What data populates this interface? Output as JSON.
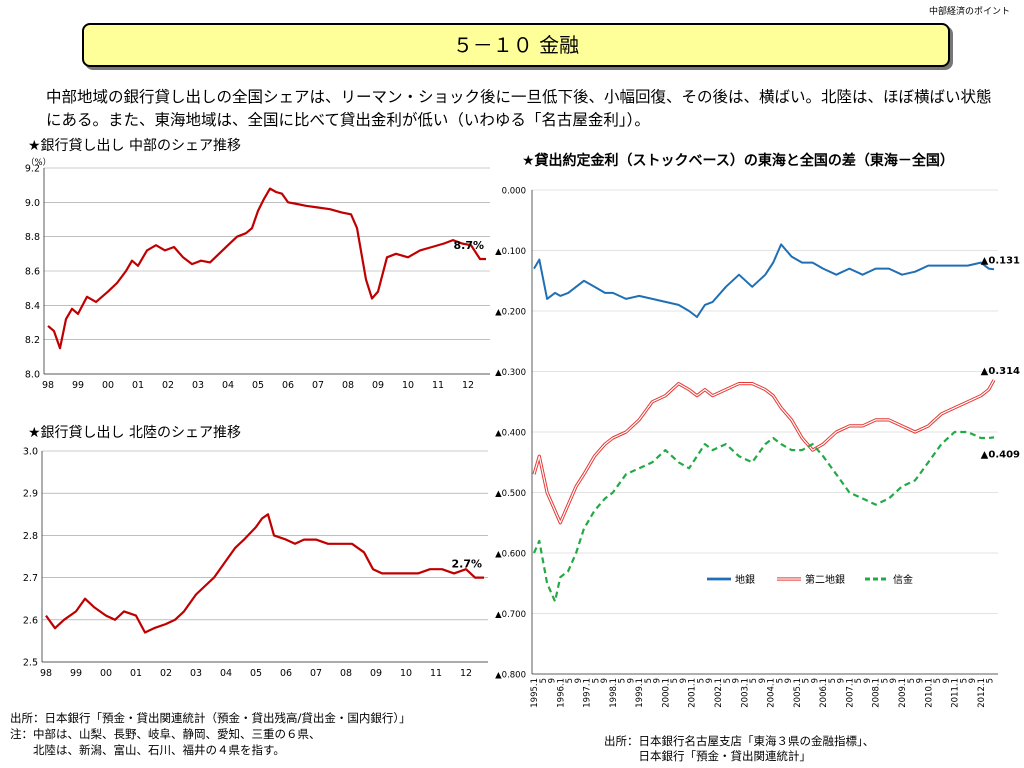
{
  "header": {
    "corner_label": "中部経済のポイント",
    "title": "５－１０ 金融"
  },
  "lead_text": "中部地域の銀行貸し出しの全国シェアは、リーマン・ショック後に一旦低下後、小幅回復、その後は、横ばい。北陸は、ほぼ横ばい状態にある。また、東海地域は、全国に比べて貸出金利が低い（いわゆる「名古屋金利」）。",
  "source_left": [
    "出所：日本銀行「預金・貸出関連統計（預金・貸出残高/貸出金・国内銀行）」",
    "注：中部は、山梨、長野、岐阜、静岡、愛知、三重の６県、",
    "　　北陸は、新潟、富山、石川、福井の４県を指す。"
  ],
  "source_right": [
    "出所：日本銀行名古屋支店「東海３県の金融指標」、",
    "　　　日本銀行「預金・貸出関連統計」"
  ],
  "colors": {
    "share_line": "#c00000",
    "chigin": "#1f6fb4",
    "daini": "#e53935",
    "shinkin": "#22aa44",
    "title_bg": "#ffff99",
    "grid": "#999999"
  },
  "chart_data": [
    {
      "type": "line",
      "title": "★銀行貸し出し 中部のシェア推移",
      "ylabel": "（%）",
      "ylim": [
        8.0,
        9.2
      ],
      "y_ticks": [
        "8.0",
        "8.2",
        "8.4",
        "8.6",
        "8.8",
        "9.0",
        "9.2"
      ],
      "x_ticks": [
        "98",
        "99",
        "00",
        "01",
        "02",
        "03",
        "04",
        "05",
        "06",
        "07",
        "08",
        "09",
        "10",
        "11",
        "12"
      ],
      "x_range": [
        1998,
        2012.6
      ],
      "end_label": "8.7%",
      "series": [
        {
          "x": [
            1998.0,
            1998.2,
            1998.4,
            1998.6,
            1998.8,
            1999.0,
            1999.3,
            1999.6,
            2000.0,
            2000.3,
            2000.6,
            2000.8,
            2001.0,
            2001.3,
            2001.6,
            2001.9,
            2002.2,
            2002.5,
            2002.8,
            2003.1,
            2003.4,
            2003.7,
            2004.0,
            2004.3,
            2004.6,
            2004.8,
            2005.0,
            2005.2,
            2005.4,
            2005.6,
            2005.8,
            2006.0,
            2006.3,
            2006.6,
            2007.0,
            2007.4,
            2007.8,
            2008.1,
            2008.3,
            2008.6,
            2008.8,
            2009.0,
            2009.3,
            2009.6,
            2010.0,
            2010.4,
            2010.8,
            2011.2,
            2011.5,
            2011.8,
            2012.1,
            2012.4,
            2012.6
          ],
          "values": [
            8.28,
            8.25,
            8.15,
            8.32,
            8.38,
            8.35,
            8.45,
            8.42,
            8.48,
            8.53,
            8.6,
            8.66,
            8.63,
            8.72,
            8.75,
            8.72,
            8.74,
            8.68,
            8.64,
            8.66,
            8.65,
            8.7,
            8.75,
            8.8,
            8.82,
            8.85,
            8.95,
            9.02,
            9.08,
            9.06,
            9.05,
            9.0,
            8.99,
            8.98,
            8.97,
            8.96,
            8.94,
            8.93,
            8.85,
            8.55,
            8.44,
            8.48,
            8.68,
            8.7,
            8.68,
            8.72,
            8.74,
            8.76,
            8.78,
            8.76,
            8.75,
            8.67,
            8.67
          ]
        }
      ]
    },
    {
      "type": "line",
      "title": "★銀行貸し出し 北陸のシェア推移",
      "ylim": [
        2.5,
        3.0
      ],
      "y_ticks": [
        "2.5",
        "2.6",
        "2.7",
        "2.8",
        "2.9",
        "3.0"
      ],
      "x_ticks": [
        "98",
        "99",
        "00",
        "01",
        "02",
        "03",
        "04",
        "05",
        "06",
        "07",
        "08",
        "09",
        "10",
        "11",
        "12"
      ],
      "x_range": [
        1998,
        2012.6
      ],
      "end_label": "2.7%",
      "series": [
        {
          "x": [
            1998.0,
            1998.3,
            1998.6,
            1999.0,
            1999.3,
            1999.6,
            2000.0,
            2000.3,
            2000.6,
            2001.0,
            2001.3,
            2001.6,
            2002.0,
            2002.3,
            2002.6,
            2003.0,
            2003.3,
            2003.6,
            2004.0,
            2004.3,
            2004.6,
            2005.0,
            2005.2,
            2005.4,
            2005.6,
            2006.0,
            2006.3,
            2006.6,
            2007.0,
            2007.4,
            2007.8,
            2008.2,
            2008.6,
            2008.9,
            2009.2,
            2009.6,
            2010.0,
            2010.4,
            2010.8,
            2011.2,
            2011.6,
            2012.0,
            2012.3,
            2012.6
          ],
          "values": [
            2.61,
            2.58,
            2.6,
            2.62,
            2.65,
            2.63,
            2.61,
            2.6,
            2.62,
            2.61,
            2.57,
            2.58,
            2.59,
            2.6,
            2.62,
            2.66,
            2.68,
            2.7,
            2.74,
            2.77,
            2.79,
            2.82,
            2.84,
            2.85,
            2.8,
            2.79,
            2.78,
            2.79,
            2.79,
            2.78,
            2.78,
            2.78,
            2.76,
            2.72,
            2.71,
            2.71,
            2.71,
            2.71,
            2.72,
            2.72,
            2.71,
            2.72,
            2.7,
            2.7
          ]
        }
      ]
    },
    {
      "type": "line",
      "title": "★貸出約定金利（ストックベース）の東海と全国の差（東海－全国）",
      "ylim": [
        -0.8,
        0.0
      ],
      "y_ticks": [
        "0.000",
        "▲0.100",
        "▲0.200",
        "▲0.300",
        "▲0.400",
        "▲0.500",
        "▲0.600",
        "▲0.700",
        "▲0.800"
      ],
      "x_ticks": [
        "1995.1",
        "5",
        "9",
        "1996.1",
        "5",
        "9",
        "1997.1",
        "5",
        "9",
        "1998.1",
        "5",
        "9",
        "1999.1",
        "5",
        "9",
        "2000.1",
        "5",
        "9",
        "2001.1",
        "5",
        "9",
        "2002.1",
        "5",
        "9",
        "2003.1",
        "5",
        "9",
        "2004.1",
        "5",
        "9",
        "2005.1",
        "5",
        "9",
        "2006.1",
        "5",
        "9",
        "2007.1",
        "5",
        "9",
        "2008.1",
        "5",
        "9",
        "2009.1",
        "5",
        "9",
        "2010.1",
        "5",
        "9",
        "2011.1",
        "5",
        "9",
        "2012.1",
        "5"
      ],
      "x_range": [
        1995.0,
        2012.5
      ],
      "legend": "bottom-right",
      "series": [
        {
          "name": "地銀",
          "end_label": "▲0.131",
          "x": [
            1995.0,
            1995.2,
            1995.5,
            1995.8,
            1996.0,
            1996.3,
            1996.6,
            1996.9,
            1997.3,
            1997.7,
            1998.0,
            1998.5,
            1999.0,
            1999.5,
            2000.0,
            2000.5,
            2000.9,
            2001.2,
            2001.5,
            2001.8,
            2002.3,
            2002.8,
            2003.3,
            2003.8,
            2004.1,
            2004.4,
            2004.8,
            2005.2,
            2005.6,
            2006.0,
            2006.5,
            2007.0,
            2007.5,
            2008.0,
            2008.5,
            2009.0,
            2009.5,
            2010.0,
            2010.5,
            2011.0,
            2011.5,
            2012.0,
            2012.3,
            2012.5
          ],
          "values": [
            -0.13,
            -0.115,
            -0.18,
            -0.17,
            -0.175,
            -0.17,
            -0.16,
            -0.15,
            -0.16,
            -0.17,
            -0.17,
            -0.18,
            -0.175,
            -0.18,
            -0.185,
            -0.19,
            -0.2,
            -0.21,
            -0.19,
            -0.185,
            -0.16,
            -0.14,
            -0.16,
            -0.14,
            -0.12,
            -0.09,
            -0.11,
            -0.12,
            -0.12,
            -0.13,
            -0.14,
            -0.13,
            -0.14,
            -0.13,
            -0.13,
            -0.14,
            -0.135,
            -0.125,
            -0.125,
            -0.125,
            -0.125,
            -0.12,
            -0.13,
            -0.131
          ]
        },
        {
          "name": "第二地銀",
          "end_label": "▲0.314",
          "x": [
            1995.0,
            1995.2,
            1995.5,
            1995.8,
            1996.0,
            1996.3,
            1996.6,
            1996.9,
            1997.3,
            1997.7,
            1998.0,
            1998.5,
            1999.0,
            1999.5,
            2000.0,
            2000.5,
            2000.9,
            2001.2,
            2001.5,
            2001.8,
            2002.3,
            2002.8,
            2003.3,
            2003.8,
            2004.1,
            2004.4,
            2004.8,
            2005.2,
            2005.6,
            2006.0,
            2006.5,
            2007.0,
            2007.5,
            2008.0,
            2008.5,
            2009.0,
            2009.5,
            2010.0,
            2010.5,
            2011.0,
            2011.5,
            2012.0,
            2012.3,
            2012.5
          ],
          "values": [
            -0.47,
            -0.44,
            -0.5,
            -0.53,
            -0.55,
            -0.52,
            -0.49,
            -0.47,
            -0.44,
            -0.42,
            -0.41,
            -0.4,
            -0.38,
            -0.35,
            -0.34,
            -0.32,
            -0.33,
            -0.34,
            -0.33,
            -0.34,
            -0.33,
            -0.32,
            -0.32,
            -0.33,
            -0.34,
            -0.36,
            -0.38,
            -0.41,
            -0.43,
            -0.42,
            -0.4,
            -0.39,
            -0.39,
            -0.38,
            -0.38,
            -0.39,
            -0.4,
            -0.39,
            -0.37,
            -0.36,
            -0.35,
            -0.34,
            -0.33,
            -0.314
          ]
        },
        {
          "name": "信金",
          "end_label": "▲0.409",
          "x": [
            1995.0,
            1995.2,
            1995.5,
            1995.8,
            1996.0,
            1996.3,
            1996.6,
            1996.9,
            1997.3,
            1997.7,
            1998.0,
            1998.5,
            1999.0,
            1999.5,
            2000.0,
            2000.5,
            2000.9,
            2001.2,
            2001.5,
            2001.8,
            2002.3,
            2002.8,
            2003.3,
            2003.8,
            2004.1,
            2004.4,
            2004.8,
            2005.2,
            2005.6,
            2006.0,
            2006.5,
            2007.0,
            2007.5,
            2008.0,
            2008.5,
            2009.0,
            2009.5,
            2010.0,
            2010.5,
            2011.0,
            2011.5,
            2012.0,
            2012.3,
            2012.5
          ],
          "values": [
            -0.6,
            -0.58,
            -0.65,
            -0.68,
            -0.64,
            -0.63,
            -0.6,
            -0.56,
            -0.53,
            -0.51,
            -0.5,
            -0.47,
            -0.46,
            -0.45,
            -0.43,
            -0.45,
            -0.46,
            -0.44,
            -0.42,
            -0.43,
            -0.42,
            -0.44,
            -0.45,
            -0.42,
            -0.41,
            -0.42,
            -0.43,
            -0.43,
            -0.42,
            -0.44,
            -0.47,
            -0.5,
            -0.51,
            -0.52,
            -0.51,
            -0.49,
            -0.48,
            -0.45,
            -0.42,
            -0.4,
            -0.4,
            -0.41,
            -0.41,
            -0.409
          ]
        }
      ]
    }
  ]
}
